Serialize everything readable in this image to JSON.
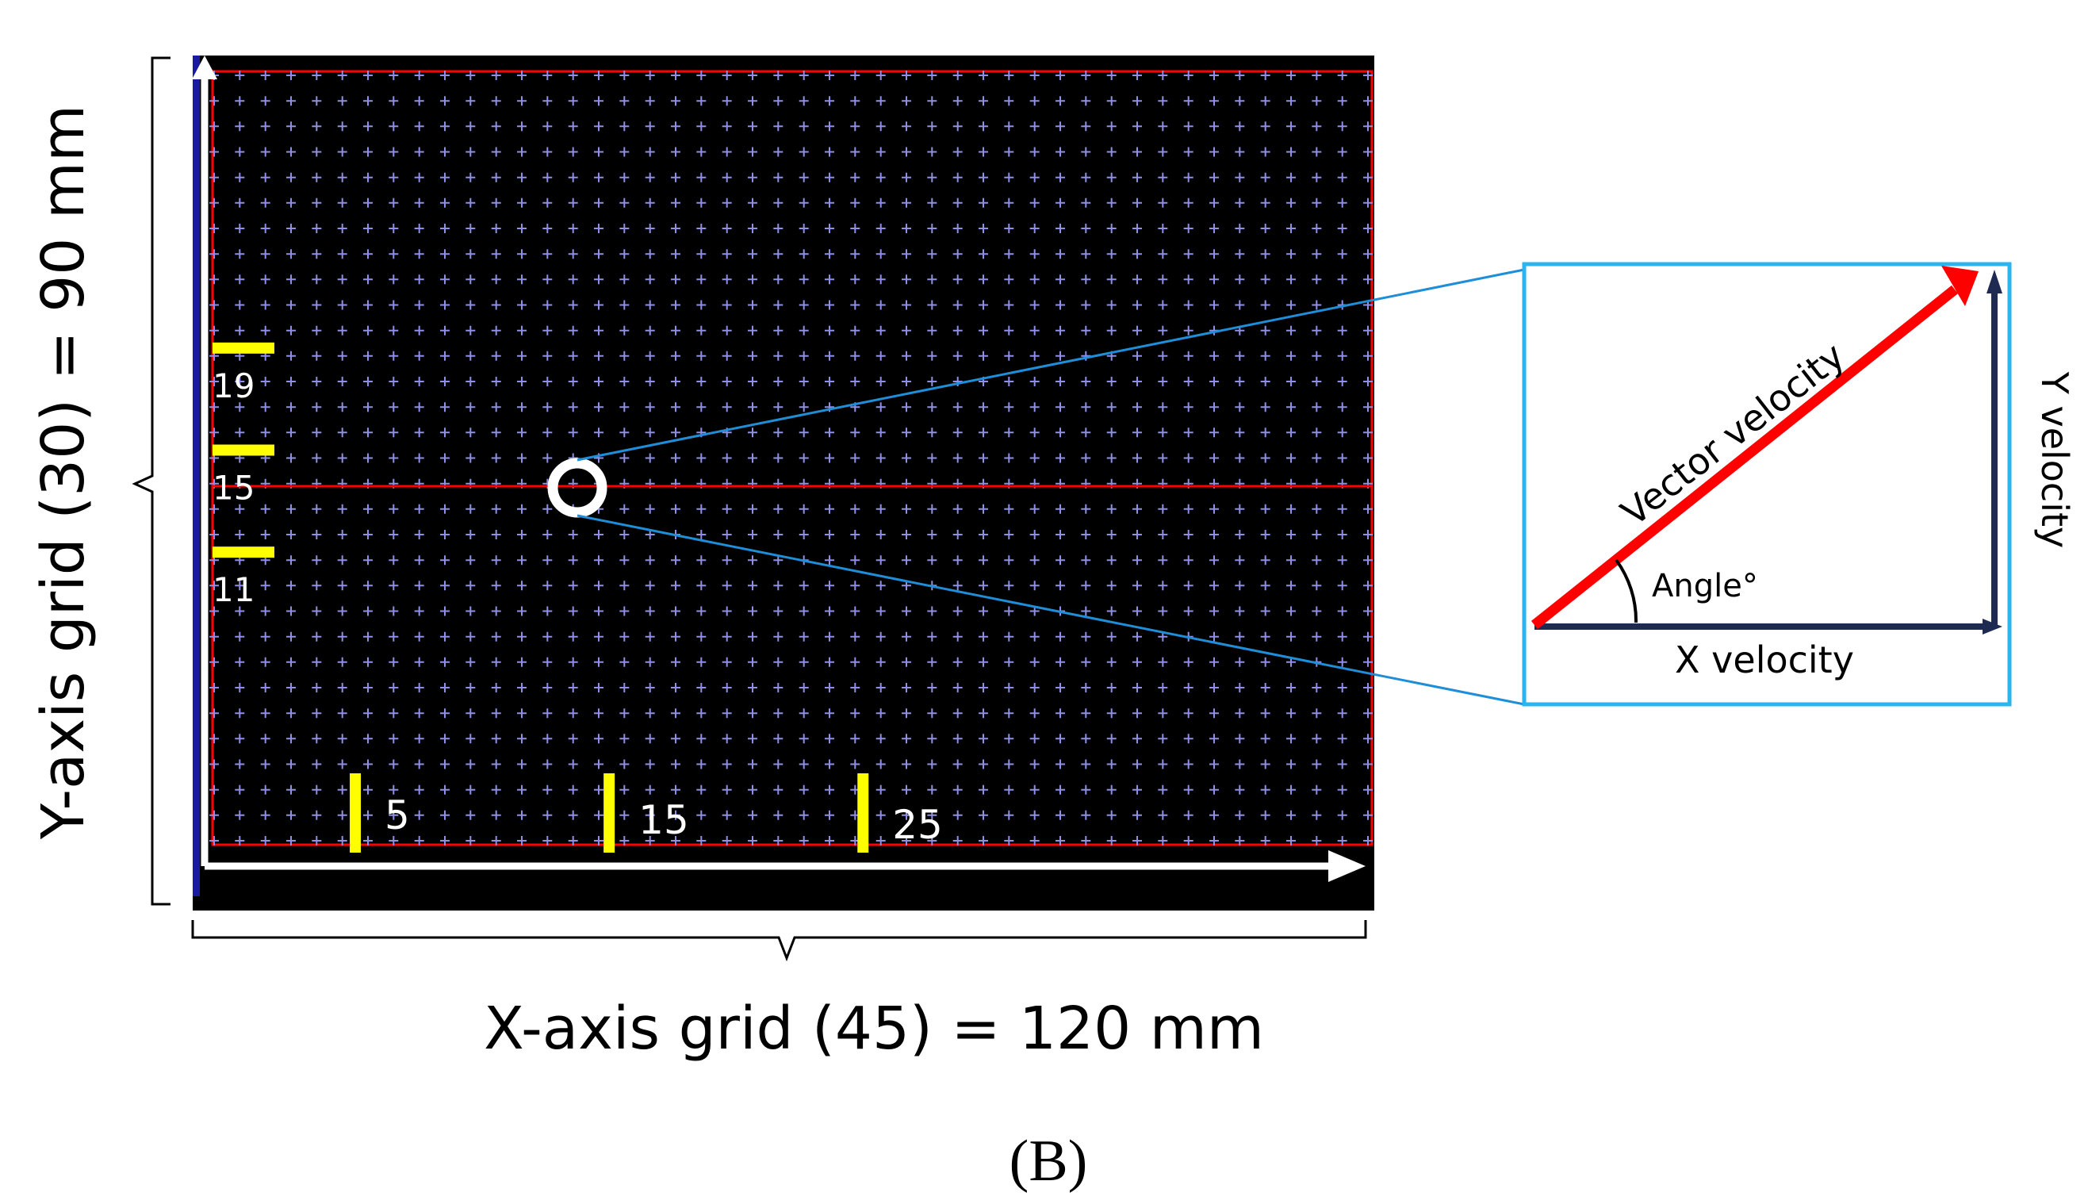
{
  "figure_label": "(B)",
  "y_axis_caption": "Y-axis grid (30) = 90 mm",
  "x_axis_caption": "X-axis grid (45) = 120 mm",
  "grid": {
    "columns": 45,
    "rows": 30
  },
  "y_markers": [
    {
      "label": "19",
      "row": 19
    },
    {
      "label": "15",
      "row": 15
    },
    {
      "label": "11",
      "row": 11
    }
  ],
  "x_markers": [
    {
      "label": "5",
      "col": 5
    },
    {
      "label": "15",
      "col": 15
    },
    {
      "label": "25",
      "col": 25
    }
  ],
  "inset": {
    "vector_label": "Vector velocity",
    "angle_label": "Angle°",
    "x_label": "X velocity",
    "y_label": "Y velocity"
  },
  "colors": {
    "background": "#000000",
    "grid_cross": "#8f8fe6",
    "marker": "#ffff00",
    "center_line": "#ff0000",
    "axis_arrow": "#ffffff",
    "axis_left_stripe": "#1a1aa0",
    "inset_border": "#2ab4f0",
    "callout_line": "#1e8ed8",
    "vector_arrow": "#ff0000",
    "component_arrow": "#1f2a52"
  }
}
